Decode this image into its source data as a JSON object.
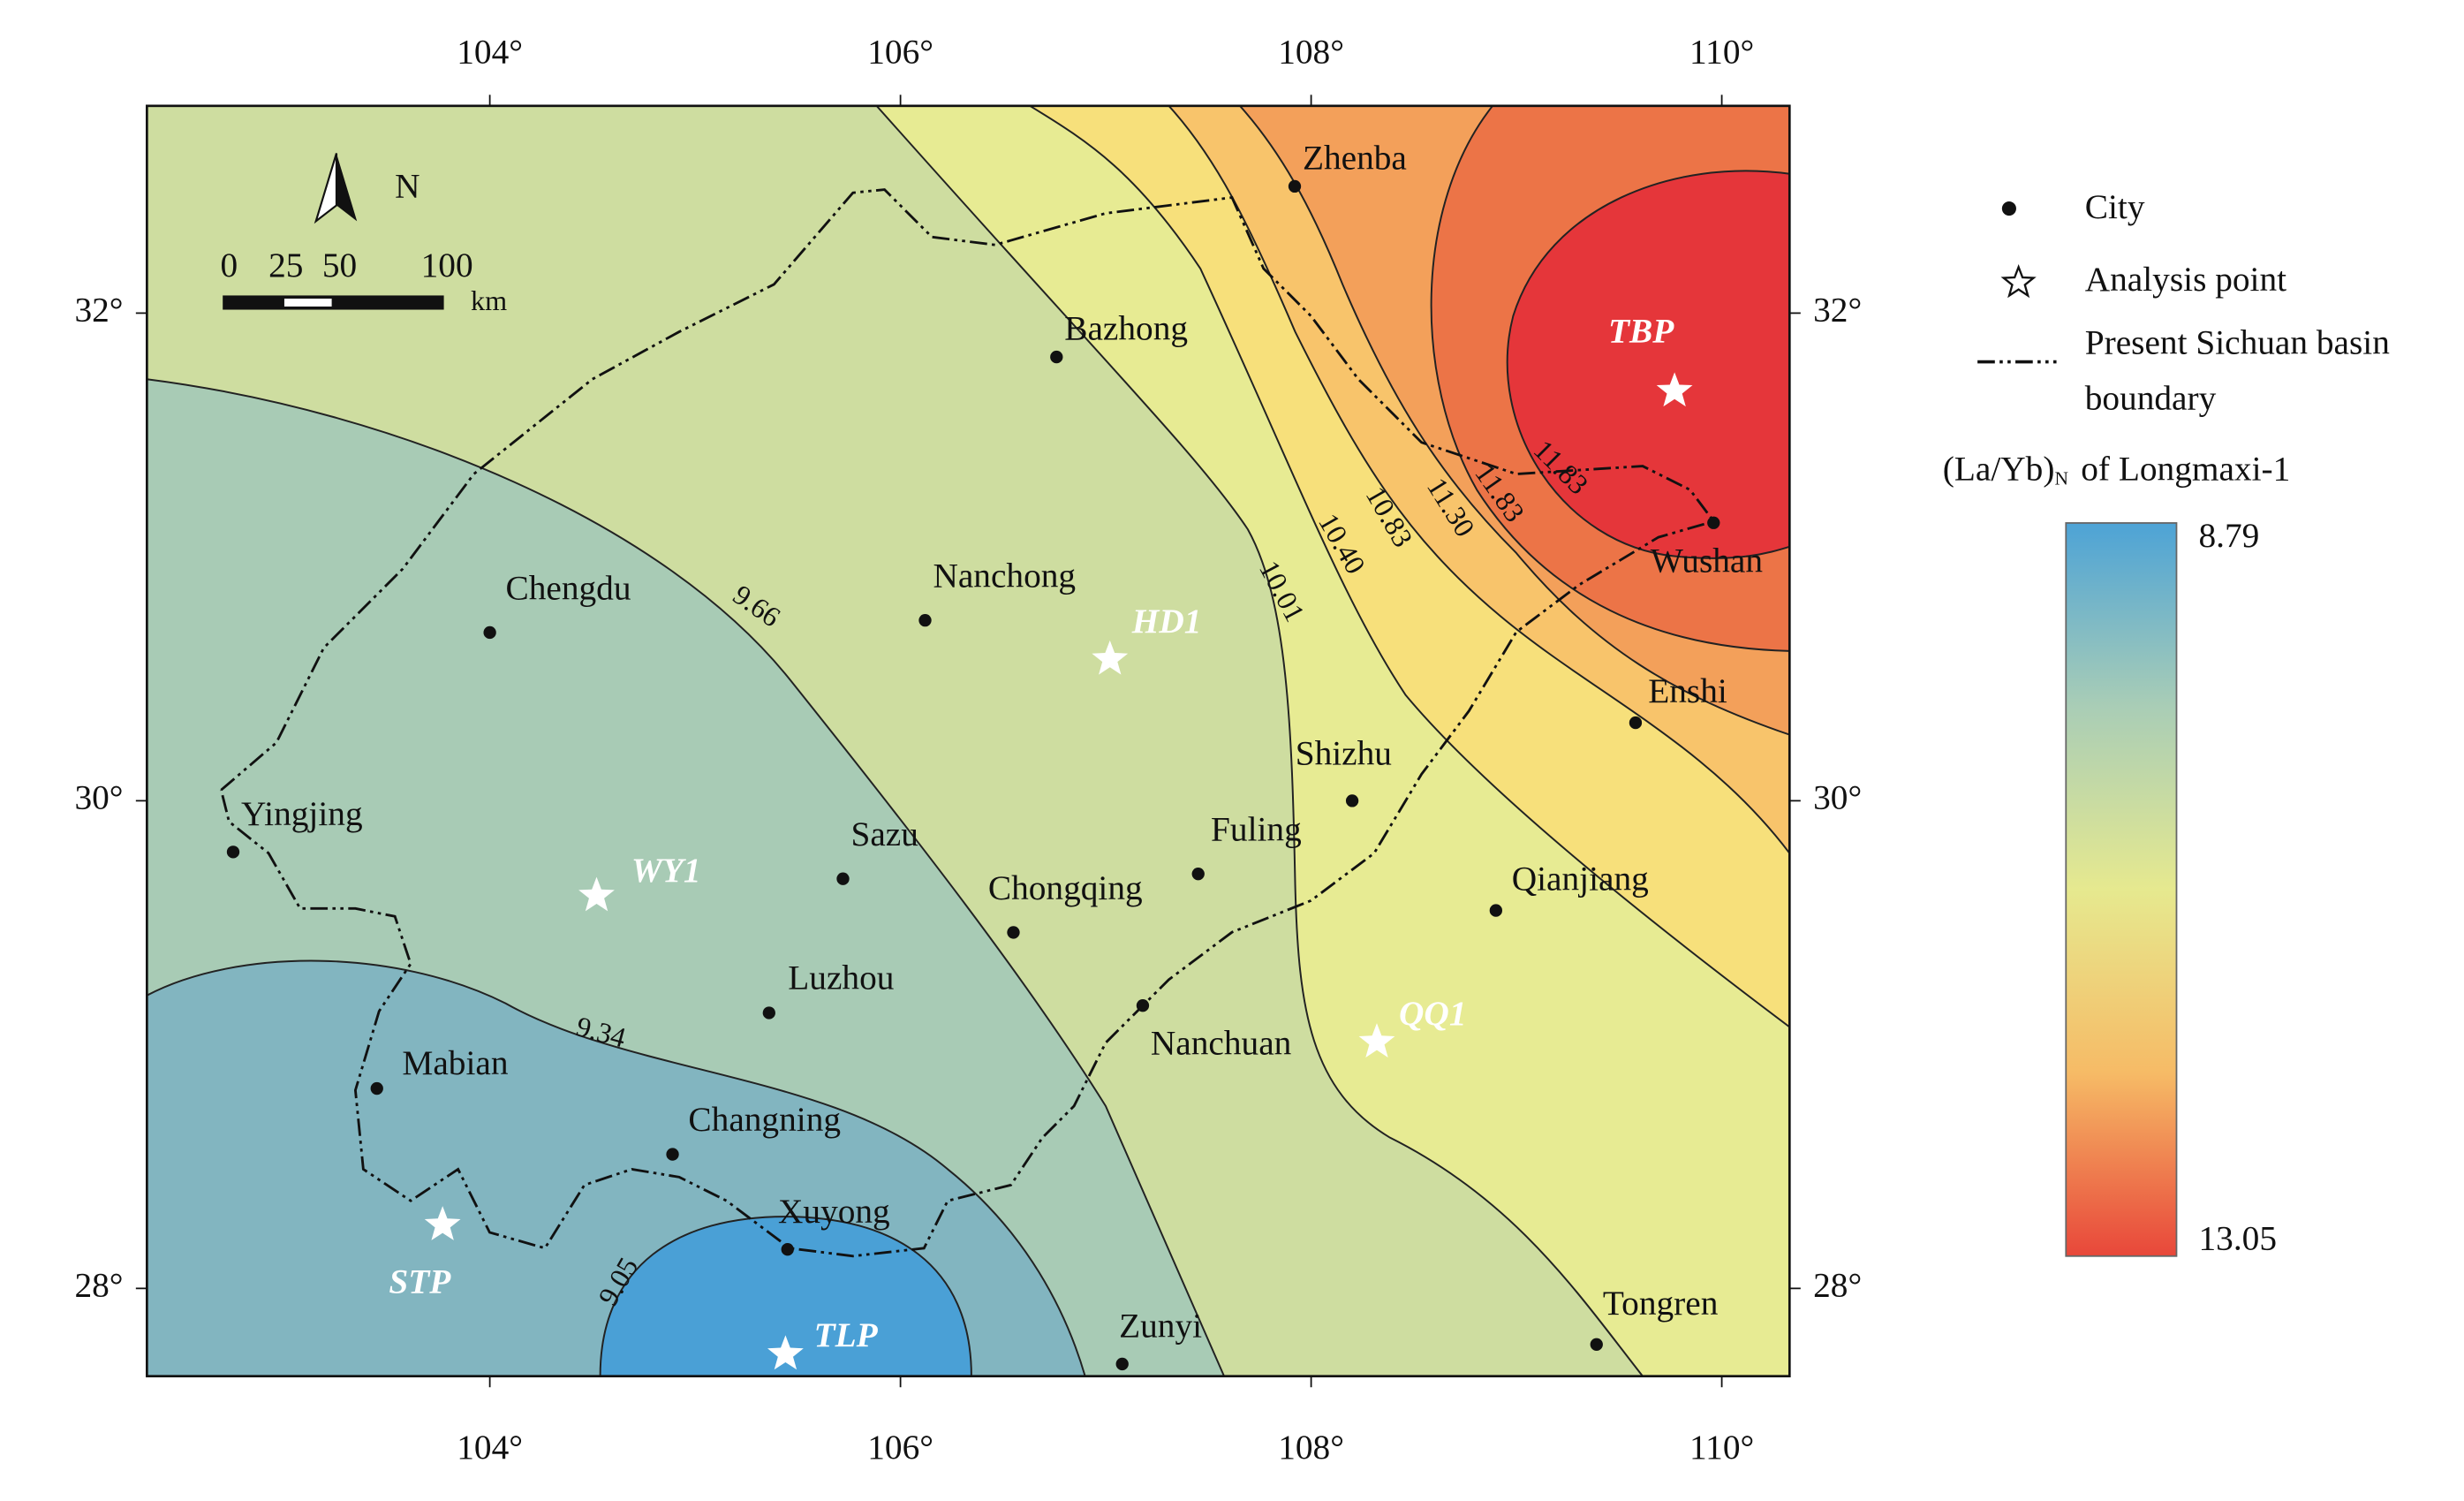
{
  "map": {
    "xlim": [
      102.33,
      110.33
    ],
    "ylim": [
      27.64,
      32.85
    ],
    "xticks": [
      {
        "value": 104,
        "label": "104°"
      },
      {
        "value": 106,
        "label": "106°"
      },
      {
        "value": 108,
        "label": "108°"
      },
      {
        "value": 110,
        "label": "110°"
      }
    ],
    "yticks": [
      {
        "value": 28,
        "label": "28°"
      },
      {
        "value": 30,
        "label": "30°"
      },
      {
        "value": 32,
        "label": "32°"
      }
    ],
    "north": "N",
    "scale_bar": {
      "labels": [
        "0",
        "25",
        "50",
        "100"
      ],
      "unit": "km"
    },
    "contour_labels": [
      "9.05",
      "9.34",
      "9.66",
      "10.01",
      "10.40",
      "10.83",
      "11.30",
      "11.83",
      "11.83"
    ],
    "cities": [
      {
        "name": "Zhenba",
        "lon": 107.92,
        "lat": 32.52
      },
      {
        "name": "Bazhong",
        "lon": 106.76,
        "lat": 31.82
      },
      {
        "name": "Chengdu",
        "lon": 104.0,
        "lat": 30.69
      },
      {
        "name": "Nanchong",
        "lon": 106.12,
        "lat": 30.74
      },
      {
        "name": "Wushan",
        "lon": 109.96,
        "lat": 31.14
      },
      {
        "name": "Enshi",
        "lon": 109.58,
        "lat": 30.32
      },
      {
        "name": "Shizhu",
        "lon": 108.2,
        "lat": 30.0
      },
      {
        "name": "Yingjing",
        "lon": 102.75,
        "lat": 29.79
      },
      {
        "name": "Sazu",
        "lon": 105.72,
        "lat": 29.68
      },
      {
        "name": "Fuling",
        "lon": 107.45,
        "lat": 29.7
      },
      {
        "name": "Chongqing",
        "lon": 106.55,
        "lat": 29.46
      },
      {
        "name": "Qianjiang",
        "lon": 108.9,
        "lat": 29.55
      },
      {
        "name": "Luzhou",
        "lon": 105.36,
        "lat": 29.13
      },
      {
        "name": "Nanchuan",
        "lon": 107.18,
        "lat": 29.16
      },
      {
        "name": "Mabian",
        "lon": 103.45,
        "lat": 28.82
      },
      {
        "name": "Changning",
        "lon": 104.89,
        "lat": 28.55
      },
      {
        "name": "Xuyong",
        "lon": 105.45,
        "lat": 28.16
      },
      {
        "name": "Zunyi",
        "lon": 107.08,
        "lat": 27.69
      },
      {
        "name": "Tongren",
        "lon": 109.39,
        "lat": 27.77
      }
    ],
    "analysis_points": [
      {
        "name": "TBP",
        "lon": 109.77,
        "lat": 31.68
      },
      {
        "name": "HD1",
        "lon": 107.02,
        "lat": 30.58
      },
      {
        "name": "WY1",
        "lon": 104.52,
        "lat": 29.61
      },
      {
        "name": "QQ1",
        "lon": 108.32,
        "lat": 29.01
      },
      {
        "name": "STP",
        "lon": 103.77,
        "lat": 28.26
      },
      {
        "name": "TLP",
        "lon": 105.44,
        "lat": 27.73
      }
    ]
  },
  "legend": {
    "city": "City",
    "analysis_point": "Analysis point",
    "boundary": [
      "Present Sichuan basin",
      "boundary"
    ],
    "colorbar_title": {
      "main": "(La/Yb)",
      "sub": "N",
      "end": "of Longmaxi-1"
    },
    "colorbar": {
      "min": 8.79,
      "max": 13.05
    }
  }
}
